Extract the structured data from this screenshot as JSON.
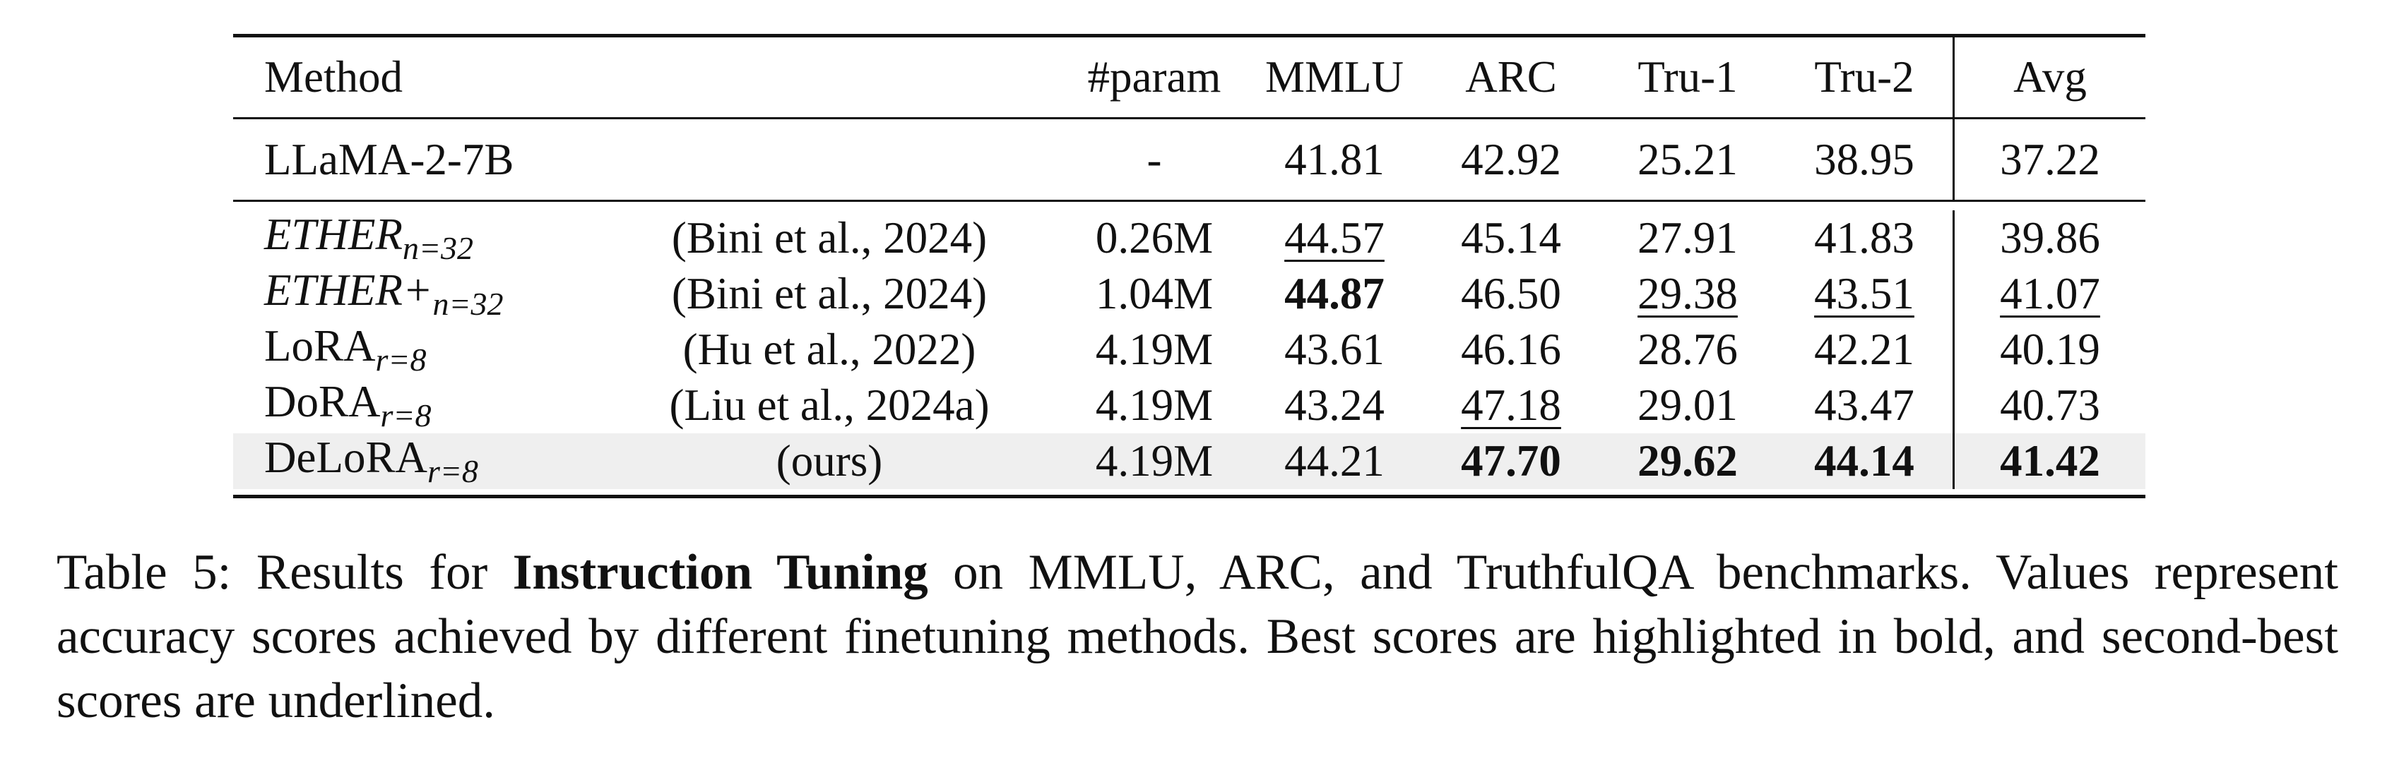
{
  "table": {
    "headers": {
      "method": "Method",
      "param": "#param",
      "mmlu": "MMLU",
      "arc": "ARC",
      "tru1": "Tru-1",
      "tru2": "Tru-2",
      "avg": "Avg"
    },
    "baseline": {
      "method": "LLaMA-2-7B",
      "param": "-",
      "mmlu": "41.81",
      "arc": "42.92",
      "tru1": "25.21",
      "tru2": "38.95",
      "avg": "37.22"
    },
    "rows": [
      {
        "method": "ETHER",
        "subscript": "n=32",
        "italic": true,
        "citation": "(Bini et al., 2024)",
        "param": "0.26M",
        "mmlu": "44.57",
        "arc": "45.14",
        "tru1": "27.91",
        "tru2": "41.83",
        "avg": "39.86"
      },
      {
        "method": "ETHER+",
        "subscript": "n=32",
        "italic": true,
        "citation": "(Bini et al., 2024)",
        "param": "1.04M",
        "mmlu": "44.87",
        "arc": "46.50",
        "tru1": "29.38",
        "tru2": "43.51",
        "avg": "41.07"
      },
      {
        "method": "LoRA",
        "subscript": "r=8",
        "italic": false,
        "citation": "(Hu et al., 2022)",
        "param": "4.19M",
        "mmlu": "43.61",
        "arc": "46.16",
        "tru1": "28.76",
        "tru2": "42.21",
        "avg": "40.19"
      },
      {
        "method": "DoRA",
        "subscript": "r=8",
        "italic": false,
        "citation": "(Liu et al., 2024a)",
        "param": "4.19M",
        "mmlu": "43.24",
        "arc": "47.18",
        "tru1": "29.01",
        "tru2": "43.47",
        "avg": "40.73"
      },
      {
        "method": "DeLoRA",
        "subscript": "r=8",
        "italic": false,
        "citation": "(ours)",
        "param": "4.19M",
        "mmlu": "44.21",
        "arc": "47.70",
        "tru1": "29.62",
        "tru2": "44.14",
        "avg": "41.42"
      }
    ]
  },
  "caption": {
    "prefix": "Table 5: Results for ",
    "bold": "Instruction Tuning",
    "suffix": " on MMLU, ARC, and TruthfulQA benchmarks. Values represent accuracy scores achieved by different finetuning methods. Best scores are highlighted in bold, and second-best scores are underlined."
  }
}
